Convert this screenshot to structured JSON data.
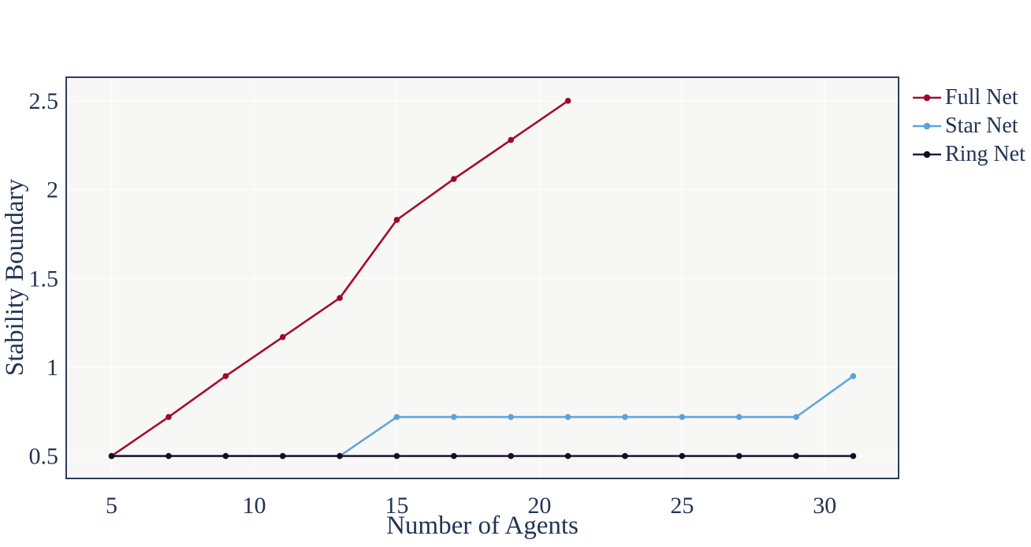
{
  "chart_data": {
    "type": "line",
    "title": "",
    "xlabel": "Number of Agents",
    "ylabel": "Stability Boundary",
    "series": [
      {
        "name": "Full Net",
        "color": "#a60c2e",
        "marker_color": "#9a0a28",
        "x": [
          5,
          7,
          9,
          11,
          13,
          15,
          17,
          19,
          21
        ],
        "values": [
          0.5,
          0.72,
          0.95,
          1.17,
          1.39,
          1.83,
          2.06,
          2.28,
          2.5
        ]
      },
      {
        "name": "Star Net",
        "color": "#61a6da",
        "marker_color": "#5ba2d8",
        "x": [
          5,
          7,
          9,
          11,
          13,
          15,
          17,
          19,
          21,
          23,
          25,
          27,
          29,
          31
        ],
        "values": [
          0.5,
          0.5,
          0.5,
          0.5,
          0.5,
          0.72,
          0.72,
          0.72,
          0.72,
          0.72,
          0.72,
          0.72,
          0.72,
          0.95
        ]
      },
      {
        "name": "Ring Net",
        "color": "#261c38",
        "marker_color": "#130c22",
        "x": [
          5,
          7,
          9,
          11,
          13,
          15,
          17,
          19,
          21,
          23,
          25,
          27,
          29,
          31
        ],
        "values": [
          0.5,
          0.5,
          0.5,
          0.5,
          0.5,
          0.5,
          0.5,
          0.5,
          0.5,
          0.5,
          0.5,
          0.5,
          0.5,
          0.5
        ]
      }
    ],
    "xticks": [
      5,
      10,
      15,
      20,
      25,
      30
    ],
    "yticks": [
      0.5,
      1,
      1.5,
      2,
      2.5
    ],
    "xlim": [
      3.41,
      32.59
    ],
    "ylim": [
      0.374,
      2.633
    ],
    "grid": true,
    "legend_position": "outer-right",
    "style": {
      "plot_background": "#f7f7f6",
      "grid_color": "#fdfdfd",
      "frame_color": "#2e3d5e",
      "text_color": "#233354",
      "line_width": 2.6,
      "marker_radius": 3.8
    }
  }
}
